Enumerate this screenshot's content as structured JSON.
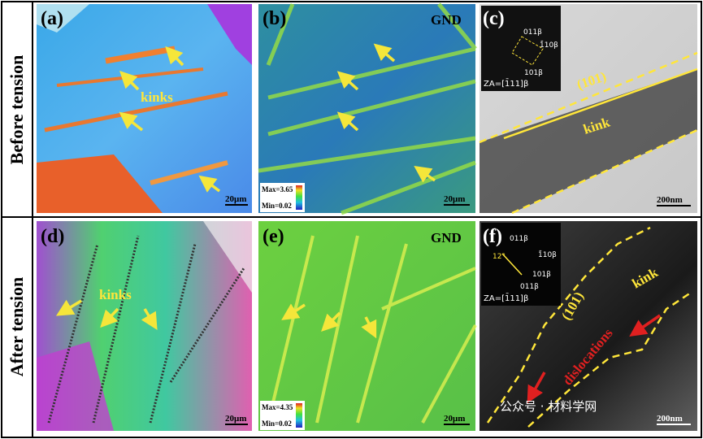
{
  "row_labels": [
    "Before tension",
    "After tension"
  ],
  "panels": [
    {
      "label": "(a)",
      "annotations": [
        "kinks"
      ],
      "scale_bar": "20μm"
    },
    {
      "label": "(b)",
      "title": "GND",
      "scale_bar": "20μm",
      "colorbar": {
        "max": "Max=3.65",
        "min": "Min=0.02"
      }
    },
    {
      "label": "(c)",
      "annotations": [
        "(101)",
        "kink"
      ],
      "zone_axis": "ZA=[1̄11]β",
      "diffraction_spots": [
        "011β",
        "1̄10β",
        "101β"
      ],
      "scale_bar": "200nm"
    },
    {
      "label": "(d)",
      "annotations": [
        "kinks"
      ],
      "scale_bar": "20μm"
    },
    {
      "label": "(e)",
      "title": "GND",
      "scale_bar": "20μm",
      "colorbar": {
        "max": "Max=4.35",
        "min": "Min=0.02"
      }
    },
    {
      "label": "(f)",
      "annotations": [
        "(101)",
        "kink",
        "dislocations",
        "12°"
      ],
      "zone_axis": "ZA=[1̄11]β",
      "diffraction_spots": [
        "011β",
        "1̄10β",
        "101β",
        "011β"
      ],
      "scale_bar": "200nm"
    }
  ],
  "watermark": "公众号 · 材料学网"
}
